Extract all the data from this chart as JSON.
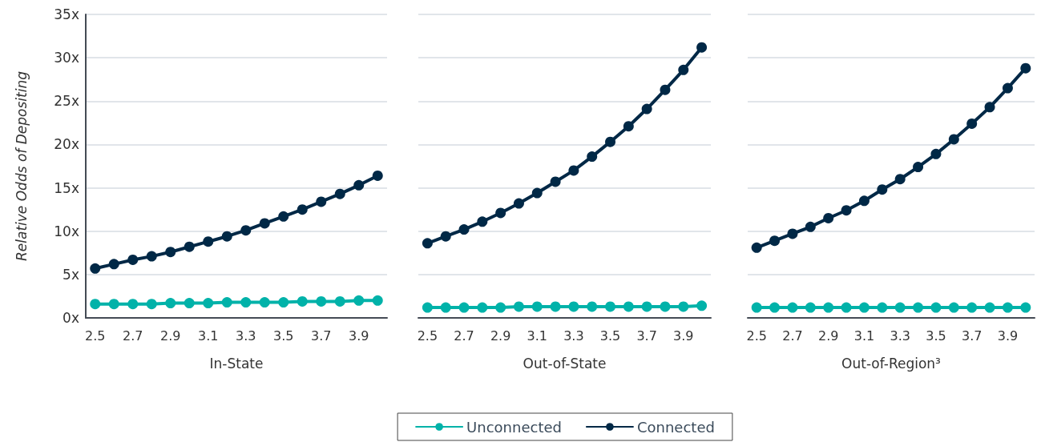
{
  "chart_data": [
    {
      "type": "line",
      "xlabel": "In-State",
      "ylabel": "Relative Odds of Depositing",
      "x": [
        2.5,
        2.6,
        2.7,
        2.8,
        2.9,
        3.0,
        3.1,
        3.2,
        3.3,
        3.4,
        3.5,
        3.6,
        3.7,
        3.8,
        3.9,
        4.0
      ],
      "xlim": [
        2.45,
        4.05
      ],
      "xticks": [
        2.5,
        2.7,
        2.9,
        3.1,
        3.3,
        3.5,
        3.7,
        3.9
      ],
      "ylim": [
        0,
        35
      ],
      "yticks": [
        {
          "value": 0,
          "label": "0x"
        },
        {
          "value": 5,
          "label": "5x"
        },
        {
          "value": 10,
          "label": "10x"
        },
        {
          "value": 15,
          "label": "15x"
        },
        {
          "value": 20,
          "label": "20x"
        },
        {
          "value": 25,
          "label": "25x"
        },
        {
          "value": 30,
          "label": "30x"
        },
        {
          "value": 35,
          "label": "35x"
        }
      ],
      "grid": "y",
      "marker": "circle",
      "line_style": "solid",
      "legend": false,
      "series": [
        {
          "color": "#00b2a9",
          "values": [
            1.6,
            1.6,
            1.6,
            1.6,
            1.7,
            1.7,
            1.7,
            1.8,
            1.8,
            1.8,
            1.8,
            1.9,
            1.9,
            1.9,
            2.0,
            2.0
          ]
        },
        {
          "color": "#002846",
          "values": [
            5.7,
            6.2,
            6.7,
            7.1,
            7.6,
            8.2,
            8.8,
            9.4,
            10.1,
            10.9,
            11.7,
            12.5,
            13.4,
            14.3,
            15.3,
            16.4
          ]
        }
      ]
    },
    {
      "type": "line",
      "xlabel": "Out-of-State",
      "x": [
        2.5,
        2.6,
        2.7,
        2.8,
        2.9,
        3.0,
        3.1,
        3.2,
        3.3,
        3.4,
        3.5,
        3.6,
        3.7,
        3.8,
        3.9,
        4.0
      ],
      "xlim": [
        2.45,
        4.05
      ],
      "xticks": [
        2.5,
        2.7,
        2.9,
        3.1,
        3.3,
        3.5,
        3.7,
        3.9
      ],
      "ylim": [
        0,
        35
      ],
      "yticks": [
        0,
        5,
        10,
        15,
        20,
        25,
        30,
        35
      ],
      "tick_labels": "x",
      "grid": "y",
      "marker": "circle",
      "line_style": "solid",
      "legend": "bottom",
      "series": [
        {
          "name": "Unconnected",
          "color": "#00b2a9",
          "values": [
            1.2,
            1.2,
            1.2,
            1.2,
            1.2,
            1.3,
            1.3,
            1.3,
            1.3,
            1.3,
            1.3,
            1.3,
            1.3,
            1.3,
            1.3,
            1.4
          ]
        },
        {
          "name": "Connected",
          "color": "#002846",
          "values": [
            8.6,
            9.4,
            10.2,
            11.1,
            12.1,
            13.2,
            14.4,
            15.7,
            17.0,
            18.6,
            20.3,
            22.1,
            24.1,
            26.3,
            28.6,
            31.2
          ]
        }
      ]
    },
    {
      "type": "line",
      "xlabel": "Out-of-Region³",
      "x": [
        2.5,
        2.6,
        2.7,
        2.8,
        2.9,
        3.0,
        3.1,
        3.2,
        3.3,
        3.4,
        3.5,
        3.6,
        3.7,
        3.8,
        3.9,
        4.0
      ],
      "xlim": [
        2.45,
        4.05
      ],
      "xticks": [
        2.5,
        2.7,
        2.9,
        3.1,
        3.3,
        3.5,
        3.7,
        3.9
      ],
      "ylim": [
        0,
        35
      ],
      "yticks": [
        0,
        5,
        10,
        15,
        20,
        25,
        30,
        35
      ],
      "tick_labels": "x",
      "grid": "y",
      "marker": "circle",
      "line_style": "solid",
      "legend": false,
      "series": [
        {
          "color": "#00b2a9",
          "values": [
            1.2,
            1.2,
            1.2,
            1.2,
            1.2,
            1.2,
            1.2,
            1.2,
            1.2,
            1.2,
            1.2,
            1.2,
            1.2,
            1.2,
            1.2,
            1.2
          ]
        },
        {
          "color": "#002846",
          "values": [
            8.1,
            8.9,
            9.7,
            10.5,
            11.5,
            12.4,
            13.5,
            14.8,
            16.0,
            17.4,
            18.9,
            20.6,
            22.4,
            24.3,
            26.5,
            28.8
          ]
        }
      ]
    }
  ]
}
